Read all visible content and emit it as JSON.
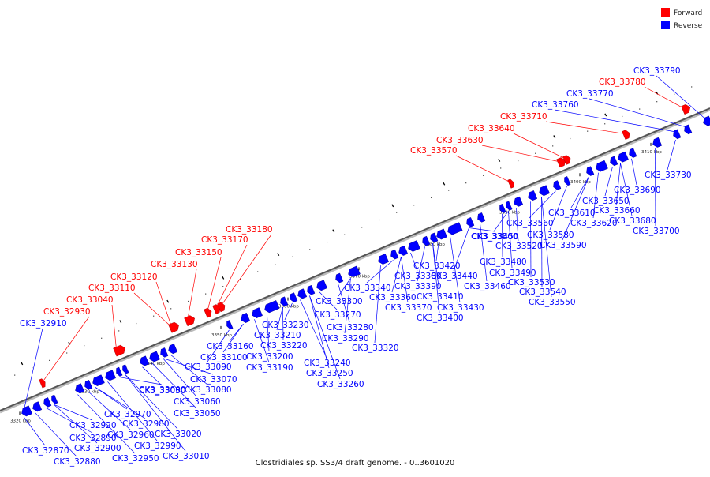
{
  "colors": {
    "forward": "#ff0000",
    "reverse": "#0000ff",
    "axis": "#555555"
  },
  "legend": {
    "forward": "Forward",
    "reverse": "Reverse"
  },
  "caption": "Clostridiales sp. SS3/4 draft genome. - 0..3601020",
  "ticks": [
    "3320 kbp",
    "3330 kbp",
    "3340 kbp",
    "3350 kbp",
    "3360 kbp",
    "3370 kbp",
    "3380 kbp",
    "3390 kbp",
    "3400 kbp",
    "3410 kbp"
  ],
  "forward_labels": [
    "CK3_32930",
    "CK3_33040",
    "CK3_33110",
    "CK3_33120",
    "CK3_33130",
    "CK3_33150",
    "CK3_33170",
    "CK3_33180",
    "CK3_33570",
    "CK3_33630",
    "CK3_33640",
    "CK3_33710",
    "CK3_33780"
  ],
  "reverse_labels": [
    "CK3_32910",
    "CK3_32870",
    "CK3_32880",
    "CK3_32890",
    "CK3_32900",
    "CK3_32920",
    "CK3_32950",
    "CK3_32960",
    "CK3_32970",
    "CK3_32980",
    "CK3_32990",
    "CK3_33000",
    "CK3_33010",
    "CK3_33020",
    "CK3_33030",
    "CK3_33050",
    "CK3_33060",
    "CK3_33070",
    "CK3_33080",
    "CK3_33090",
    "CK3_33100",
    "CK3_33160",
    "CK3_33190",
    "CK3_33200",
    "CK3_33210",
    "CK3_33220",
    "CK3_33230",
    "CK3_33240",
    "CK3_33250",
    "CK3_33260",
    "CK3_33270",
    "CK3_33280",
    "CK3_33290",
    "CK3_33300",
    "CK3_33320",
    "CK3_33340",
    "CK3_33360",
    "CK3_33370",
    "CK3_33380",
    "CK3_33390",
    "CK3_33400",
    "CK3_33410",
    "CK3_33420",
    "CK3_33430",
    "CK3_33440",
    "CK3_33450",
    "CK3_33460",
    "CK3_33480",
    "CK3_33490",
    "CK3_33500",
    "CK3_33520",
    "CK3_33530",
    "CK3_33540",
    "CK3_33550",
    "CK3_33560",
    "CK3_33580",
    "CK3_33590",
    "CK3_33610",
    "CK3_33620",
    "CK3_33650",
    "CK3_33660",
    "CK3_33680",
    "CK3_33690",
    "CK3_33700",
    "CK3_33730",
    "CK3_33760",
    "CK3_33770",
    "CK3_33790"
  ]
}
